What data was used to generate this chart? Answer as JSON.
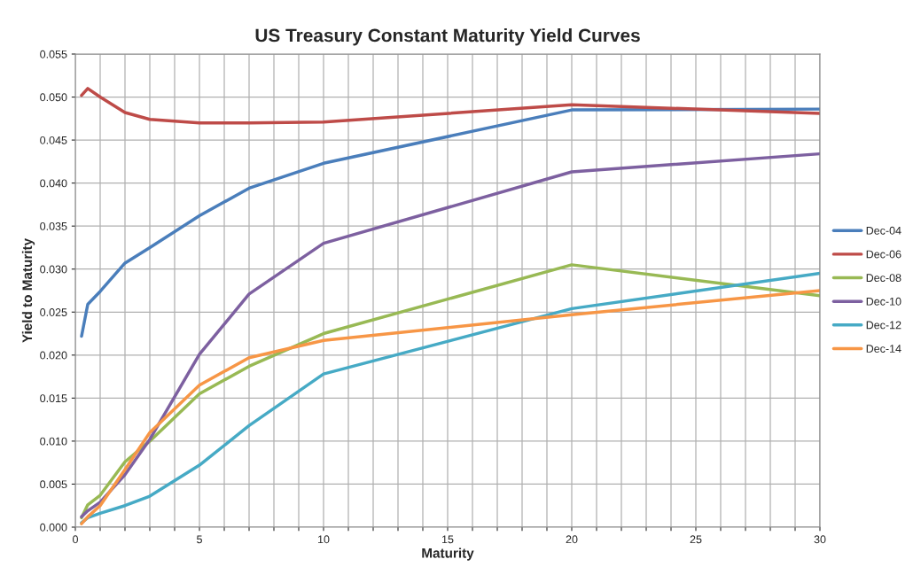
{
  "chart_data": {
    "type": "line",
    "title": "US Treasury Constant Maturity Yield Curves",
    "xlabel": "Maturity",
    "ylabel": "Yield to Maturity",
    "x": [
      0.25,
      0.5,
      1,
      2,
      3,
      5,
      7,
      10,
      20,
      30
    ],
    "series": [
      {
        "name": "Dec-04",
        "color": "#4a7ebb",
        "values": [
          0.0222,
          0.0259,
          0.0274,
          0.0307,
          0.0325,
          0.0362,
          0.0394,
          0.0423,
          0.0485,
          0.0486
        ]
      },
      {
        "name": "Dec-06",
        "color": "#be4b48",
        "values": [
          0.0502,
          0.051,
          0.05,
          0.0482,
          0.0474,
          0.047,
          0.047,
          0.0471,
          0.0491,
          0.0481
        ]
      },
      {
        "name": "Dec-08",
        "color": "#98b954",
        "values": [
          0.0011,
          0.0026,
          0.0037,
          0.0076,
          0.01,
          0.0155,
          0.0187,
          0.0225,
          0.0305,
          0.0269
        ]
      },
      {
        "name": "Dec-10",
        "color": "#7d60a0",
        "values": [
          0.0012,
          0.0019,
          0.0029,
          0.0061,
          0.0102,
          0.0201,
          0.0271,
          0.033,
          0.0413,
          0.0434
        ]
      },
      {
        "name": "Dec-12",
        "color": "#46aac5",
        "values": [
          0.0005,
          0.0011,
          0.0016,
          0.0025,
          0.0036,
          0.0072,
          0.0118,
          0.0178,
          0.0254,
          0.0295
        ]
      },
      {
        "name": "Dec-14",
        "color": "#f79646",
        "values": [
          0.0004,
          0.0012,
          0.0025,
          0.0067,
          0.011,
          0.0165,
          0.0197,
          0.0217,
          0.0247,
          0.0275
        ]
      }
    ],
    "xlim": [
      0,
      30
    ],
    "xticks": [
      0,
      {
        "value": 1,
        "label": null
      },
      {
        "value": 2,
        "label": null
      },
      {
        "value": 3,
        "label": null
      },
      {
        "value": 4,
        "label": null
      },
      5,
      {
        "value": 6,
        "label": null
      },
      {
        "value": 7,
        "label": null
      },
      {
        "value": 8,
        "label": null
      },
      {
        "value": 9,
        "label": null
      },
      10,
      {
        "value": 11,
        "label": null
      },
      {
        "value": 12,
        "label": null
      },
      {
        "value": 13,
        "label": null
      },
      {
        "value": 14,
        "label": null
      },
      15,
      {
        "value": 16,
        "label": null
      },
      {
        "value": 17,
        "label": null
      },
      {
        "value": 18,
        "label": null
      },
      {
        "value": 19,
        "label": null
      },
      20,
      {
        "value": 21,
        "label": null
      },
      {
        "value": 22,
        "label": null
      },
      {
        "value": 23,
        "label": null
      },
      {
        "value": 24,
        "label": null
      },
      25,
      {
        "value": 26,
        "label": null
      },
      {
        "value": 27,
        "label": null
      },
      {
        "value": 28,
        "label": null
      },
      {
        "value": 29,
        "label": null
      },
      30
    ],
    "ylim": [
      0,
      0.055
    ],
    "yticks": [
      {
        "value": 0,
        "label": "0.000"
      },
      {
        "value": 0.005,
        "label": "0.005"
      },
      {
        "value": 0.01,
        "label": "0.010"
      },
      {
        "value": 0.015,
        "label": "0.015"
      },
      {
        "value": 0.02,
        "label": "0.020"
      },
      {
        "value": 0.025,
        "label": "0.025"
      },
      {
        "value": 0.03,
        "label": "0.030"
      },
      {
        "value": 0.035,
        "label": "0.035"
      },
      {
        "value": 0.04,
        "label": "0.040"
      },
      {
        "value": 0.045,
        "label": "0.045"
      },
      {
        "value": 0.05,
        "label": "0.050"
      },
      {
        "value": 0.055,
        "label": "0.055"
      }
    ],
    "grid": true,
    "legend": "right",
    "marker": "none",
    "line_style": "solid"
  }
}
